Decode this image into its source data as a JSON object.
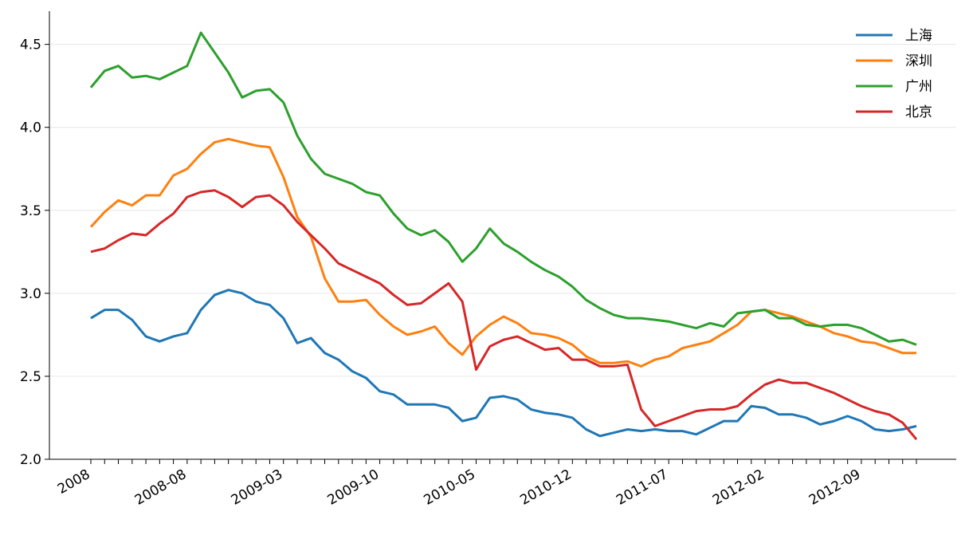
{
  "chart_data": {
    "type": "line",
    "categories": [
      "2008",
      null,
      null,
      null,
      null,
      null,
      null,
      "2008-08",
      null,
      null,
      null,
      null,
      null,
      null,
      "2009-03",
      null,
      null,
      null,
      null,
      null,
      null,
      "2009-10",
      null,
      null,
      null,
      null,
      null,
      null,
      "2010-05",
      null,
      null,
      null,
      null,
      null,
      null,
      "2010-12",
      null,
      null,
      null,
      null,
      null,
      null,
      "2011-07",
      null,
      null,
      null,
      null,
      null,
      null,
      "2012-02",
      null,
      null,
      null,
      null,
      null,
      null,
      "2012-09",
      null,
      null,
      null,
      null
    ],
    "series": [
      {
        "name": "上海",
        "color": "#1f77b4",
        "values": [
          2.85,
          2.9,
          2.9,
          2.84,
          2.74,
          2.71,
          2.74,
          2.76,
          2.9,
          2.99,
          3.02,
          3.0,
          2.95,
          2.93,
          2.85,
          2.7,
          2.73,
          2.64,
          2.6,
          2.53,
          2.49,
          2.41,
          2.39,
          2.33,
          2.33,
          2.33,
          2.31,
          2.23,
          2.25,
          2.37,
          2.38,
          2.36,
          2.3,
          2.28,
          2.27,
          2.25,
          2.18,
          2.14,
          2.16,
          2.18,
          2.17,
          2.18,
          2.17,
          2.17,
          2.15,
          2.19,
          2.23,
          2.23,
          2.32,
          2.31,
          2.27,
          2.27,
          2.25,
          2.21,
          2.23,
          2.26,
          2.23,
          2.18,
          2.17,
          2.18,
          2.2
        ]
      },
      {
        "name": "深圳",
        "color": "#ff7f0e",
        "values": [
          3.4,
          3.49,
          3.56,
          3.53,
          3.59,
          3.59,
          3.71,
          3.75,
          3.84,
          3.91,
          3.93,
          3.91,
          3.89,
          3.88,
          3.7,
          3.46,
          3.34,
          3.09,
          2.95,
          2.95,
          2.96,
          2.87,
          2.8,
          2.75,
          2.77,
          2.8,
          2.7,
          2.63,
          2.74,
          2.81,
          2.86,
          2.82,
          2.76,
          2.75,
          2.73,
          2.69,
          2.62,
          2.58,
          2.58,
          2.59,
          2.56,
          2.6,
          2.62,
          2.67,
          2.69,
          2.71,
          2.76,
          2.81,
          2.89,
          2.9,
          2.88,
          2.86,
          2.83,
          2.8,
          2.76,
          2.74,
          2.71,
          2.7,
          2.67,
          2.64,
          2.64
        ]
      },
      {
        "name": "广州",
        "color": "#2ca02c",
        "values": [
          4.24,
          4.34,
          4.37,
          4.3,
          4.31,
          4.29,
          4.33,
          4.37,
          4.57,
          4.45,
          4.33,
          4.18,
          4.22,
          4.23,
          4.15,
          3.95,
          3.81,
          3.72,
          3.69,
          3.66,
          3.61,
          3.59,
          3.48,
          3.39,
          3.35,
          3.38,
          3.31,
          3.19,
          3.27,
          3.39,
          3.3,
          3.25,
          3.19,
          3.14,
          3.1,
          3.04,
          2.96,
          2.91,
          2.87,
          2.85,
          2.85,
          2.84,
          2.83,
          2.81,
          2.79,
          2.82,
          2.8,
          2.88,
          2.89,
          2.9,
          2.85,
          2.85,
          2.81,
          2.8,
          2.81,
          2.81,
          2.79,
          2.75,
          2.71,
          2.72,
          2.69
        ]
      },
      {
        "name": "北京",
        "color": "#d62728",
        "values": [
          3.25,
          3.27,
          3.32,
          3.36,
          3.35,
          3.42,
          3.48,
          3.58,
          3.61,
          3.62,
          3.58,
          3.52,
          3.58,
          3.59,
          3.53,
          3.43,
          3.35,
          3.27,
          3.18,
          3.14,
          3.1,
          3.06,
          2.99,
          2.93,
          2.94,
          3.0,
          3.06,
          2.95,
          2.54,
          2.68,
          2.72,
          2.74,
          2.7,
          2.66,
          2.67,
          2.6,
          2.6,
          2.56,
          2.56,
          2.57,
          2.3,
          2.2,
          2.23,
          2.26,
          2.29,
          2.3,
          2.3,
          2.32,
          2.39,
          2.45,
          2.48,
          2.46,
          2.46,
          2.43,
          2.4,
          2.36,
          2.32,
          2.29,
          2.27,
          2.22,
          2.12
        ]
      }
    ],
    "ylim": [
      2.0,
      4.7
    ],
    "yticks": [
      {
        "value": 2,
        "label": "2.0"
      },
      2.5,
      {
        "value": 3,
        "label": "3.0"
      },
      3.5,
      {
        "value": 4,
        "label": "4.0"
      },
      4.5
    ],
    "grid": true,
    "legend": "upper right"
  }
}
